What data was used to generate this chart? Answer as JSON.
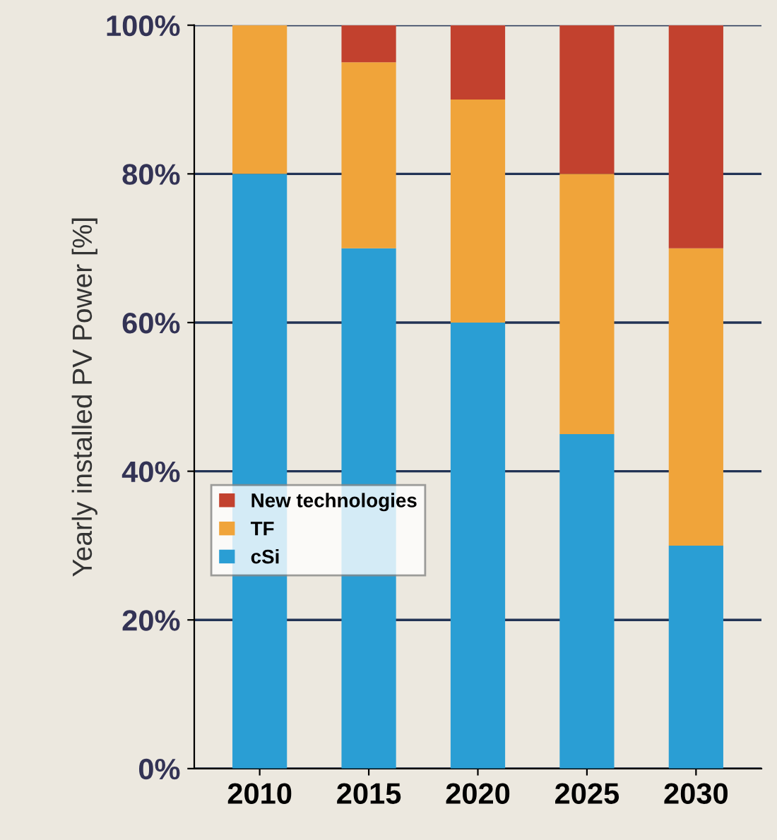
{
  "chart_data": {
    "type": "bar",
    "stacked": true,
    "ylabel": "Yearly installed PV Power [%]",
    "categories": [
      "2010",
      "2015",
      "2020",
      "2025",
      "2030"
    ],
    "series": [
      {
        "name": "cSi",
        "color": "#2a9ed4",
        "values": [
          80,
          70,
          60,
          45,
          30
        ]
      },
      {
        "name": "TF",
        "color": "#f0a43a",
        "values": [
          20,
          25,
          30,
          35,
          40
        ]
      },
      {
        "name": "New technologies",
        "color": "#c2412e",
        "values": [
          0,
          5,
          10,
          20,
          30
        ]
      }
    ],
    "ylim": [
      0,
      100
    ],
    "yticks": [
      {
        "value": 0,
        "label": "0%"
      },
      {
        "value": 20,
        "label": "20%"
      },
      {
        "value": 40,
        "label": "40%"
      },
      {
        "value": 60,
        "label": "60%"
      },
      {
        "value": 80,
        "label": "80%"
      },
      {
        "value": 100,
        "label": "100%"
      }
    ],
    "grid": "y",
    "legend": "bottom left"
  }
}
